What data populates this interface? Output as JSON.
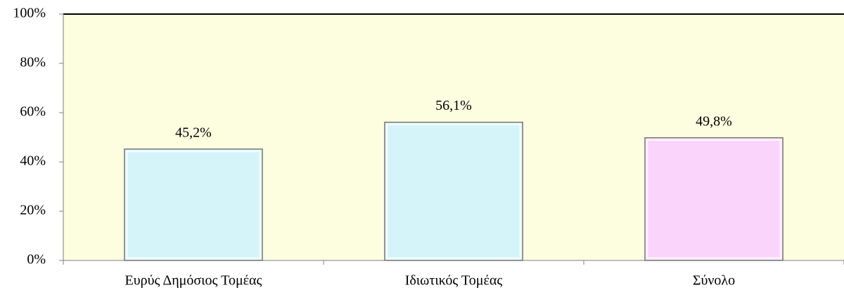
{
  "chart_data": {
    "type": "bar",
    "categories": [
      "Ευρύς Δημόσιος Τομέας",
      "Ιδιωτικός Τομέας",
      "Σύνολο"
    ],
    "values": [
      45.2,
      56.1,
      49.8
    ],
    "value_labels": [
      "45,2%",
      "56,1%",
      "49,8%"
    ],
    "colors": [
      "#d4f4fa",
      "#d4f4fa",
      "#fbd4fb"
    ],
    "background": "#fdfde0",
    "ylim": [
      0,
      100
    ],
    "yticks": [
      {
        "value": 0,
        "label": "0%"
      },
      {
        "value": 20,
        "label": "20%"
      },
      {
        "value": 40,
        "label": "40%"
      },
      {
        "value": 60,
        "label": "60%"
      },
      {
        "value": 80,
        "label": "80%"
      },
      {
        "value": 100,
        "label": "100%"
      }
    ]
  }
}
